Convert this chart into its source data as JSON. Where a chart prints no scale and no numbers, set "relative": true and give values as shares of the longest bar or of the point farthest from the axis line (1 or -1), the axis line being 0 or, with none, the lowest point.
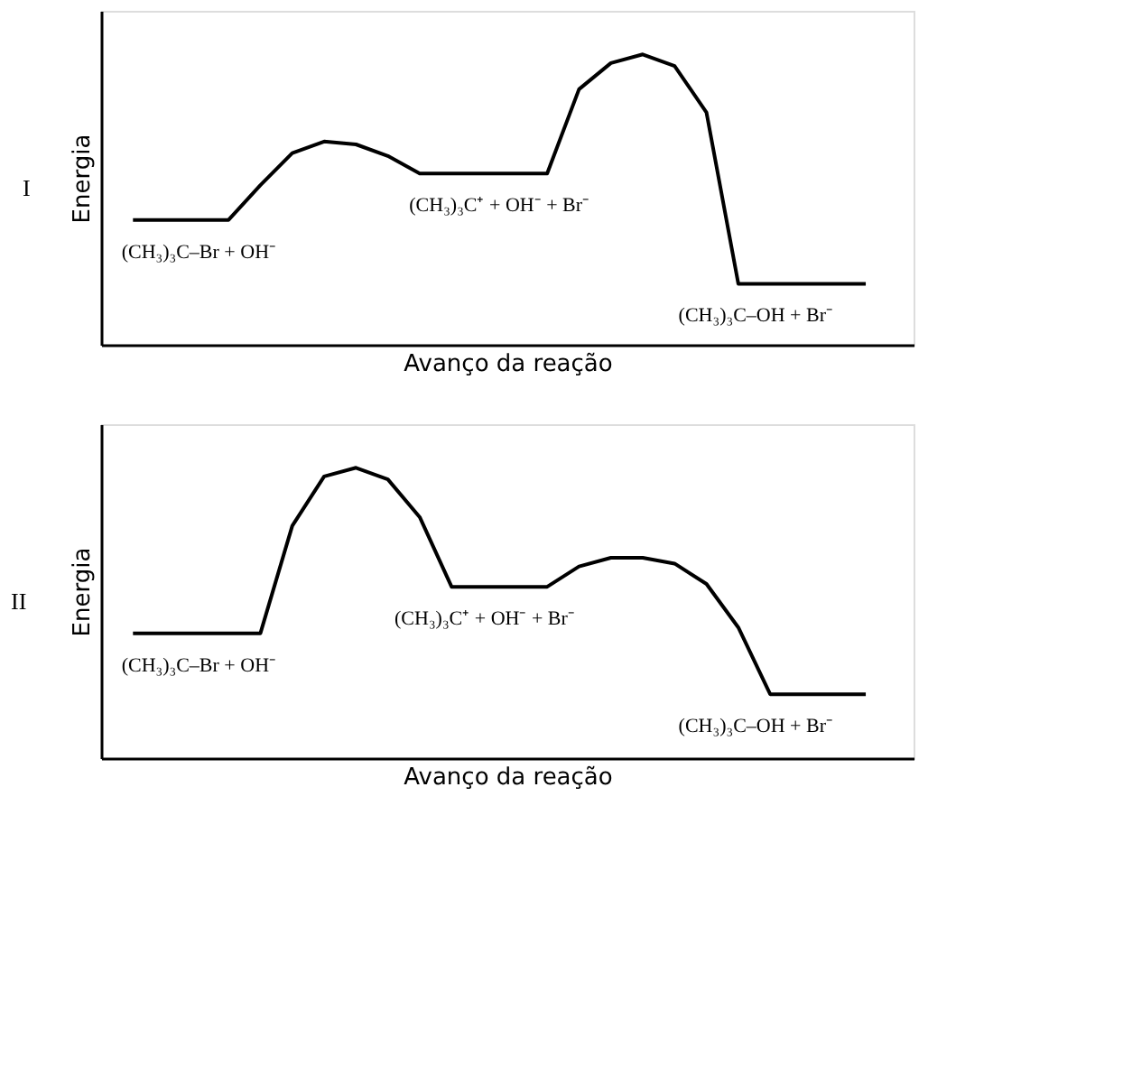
{
  "chart_data": [
    {
      "type": "line",
      "title": "I",
      "xlabel": "Avanço da reação",
      "ylabel": "Energia",
      "relative": true,
      "tick_labels": false,
      "grid": false,
      "marker": "none",
      "line_style": "solid",
      "color": "#000000",
      "categories": [
        null,
        null,
        null,
        null,
        null,
        null,
        null,
        null,
        null,
        null,
        null,
        null,
        null,
        null,
        null,
        null,
        null,
        null,
        null,
        null,
        null,
        null,
        null,
        null
      ],
      "values": [
        0.43,
        0.43,
        0.43,
        0.43,
        0.55,
        0.66,
        0.7,
        0.69,
        0.65,
        0.59,
        0.59,
        0.59,
        0.59,
        0.59,
        0.88,
        0.97,
        1.0,
        0.96,
        0.8,
        0.21,
        0.21,
        0.21,
        0.21,
        0.21
      ],
      "annotations": [
        "(CH₃)₃C–Br + OH⁻",
        "(CH₃)₃C⁺ + OH⁻ + Br⁻",
        "(CH₃)₃C–OH + Br⁻"
      ]
    },
    {
      "type": "line",
      "title": "II",
      "xlabel": "Avanço da reação",
      "ylabel": "Energia",
      "relative": true,
      "tick_labels": false,
      "grid": false,
      "marker": "none",
      "line_style": "solid",
      "color": "#000000",
      "categories": [
        null,
        null,
        null,
        null,
        null,
        null,
        null,
        null,
        null,
        null,
        null,
        null,
        null,
        null,
        null,
        null,
        null,
        null,
        null,
        null,
        null,
        null,
        null,
        null
      ],
      "values": [
        0.43,
        0.43,
        0.43,
        0.43,
        0.43,
        0.8,
        0.97,
        1.0,
        0.96,
        0.83,
        0.59,
        0.59,
        0.59,
        0.59,
        0.66,
        0.69,
        0.69,
        0.67,
        0.6,
        0.45,
        0.22,
        0.22,
        0.22,
        0.22
      ],
      "annotations": [
        "(CH₃)₃C–Br + OH⁻",
        "(CH₃)₃C⁺ + OH⁻ + Br⁻",
        "(CH₃)₃C–OH + Br⁻"
      ]
    }
  ]
}
